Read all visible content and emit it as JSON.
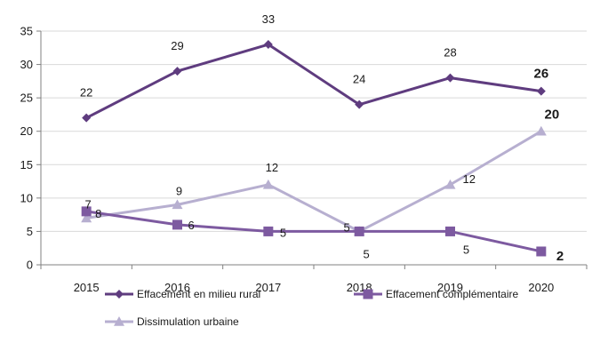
{
  "chart_data": {
    "type": "line",
    "title": "",
    "xlabel": "",
    "ylabel": "",
    "categories": [
      "2015",
      "2016",
      "2017",
      "2018",
      "2019",
      "2020"
    ],
    "ylim": [
      0,
      35
    ],
    "yticks": [
      0,
      5,
      10,
      15,
      20,
      25,
      30,
      35
    ],
    "grid": "horizontal",
    "legend_position": "bottom",
    "series": [
      {
        "name": "Effacement en milieu rural",
        "values": [
          22,
          29,
          33,
          24,
          28,
          26
        ],
        "labels": [
          "22",
          "29",
          "33",
          "24",
          "28",
          "26"
        ],
        "color": "#5f3c7f",
        "marker": "diamond"
      },
      {
        "name": "Effacement complémentaire",
        "values": [
          8,
          6,
          5,
          5,
          5,
          2
        ],
        "labels": [
          "8",
          "6",
          "5",
          "5",
          "5",
          "2"
        ],
        "color": "#7d5aa0",
        "marker": "square"
      },
      {
        "name": "Dissimulation urbaine",
        "values": [
          7,
          9,
          12,
          5,
          12,
          20
        ],
        "labels": [
          "7",
          "9",
          "12",
          "5",
          "12",
          "20"
        ],
        "color": "#b7afd0",
        "marker": "triangle"
      }
    ]
  }
}
